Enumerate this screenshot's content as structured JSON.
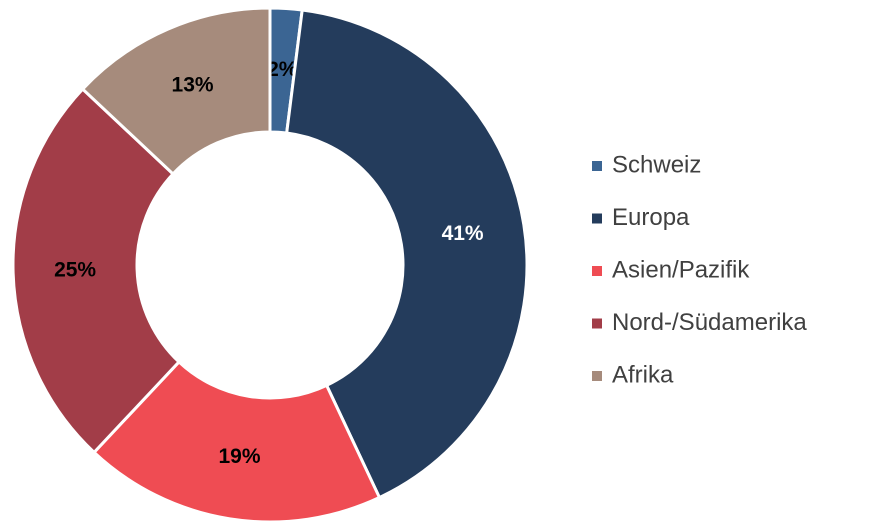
{
  "chart_data": {
    "type": "pie",
    "categories": [
      "Schweiz",
      "Europa",
      "Asien/Pazifik",
      "Nord-/Südamerika",
      "Afrika"
    ],
    "values": [
      2,
      41,
      19,
      25,
      13
    ],
    "value_labels": [
      "2%",
      "41%",
      "19%",
      "25%",
      "13%"
    ],
    "colors": [
      "#3b6593",
      "#243c5c",
      "#ef4c53",
      "#a23d48",
      "#a68b7c"
    ],
    "label_colors": [
      "#000000",
      "#ffffff",
      "#000000",
      "#000000",
      "#000000"
    ],
    "donut": true,
    "legend": "right"
  }
}
